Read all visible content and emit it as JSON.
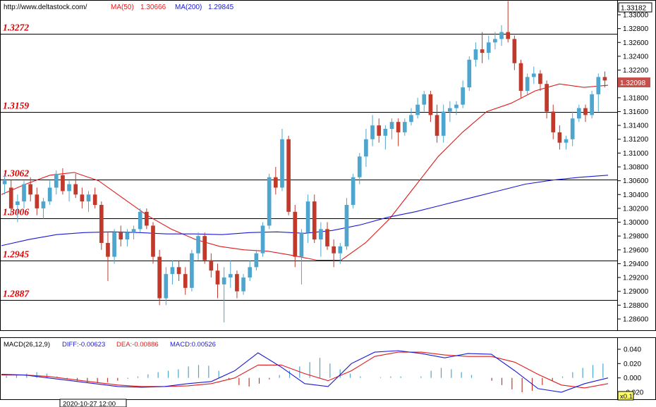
{
  "header": {
    "source": "http://www.deltastock.com/",
    "ma50_label": "MA(50)",
    "ma50_value": "1.30666",
    "ma200_label": "MA(200)",
    "ma200_value": "1.29845"
  },
  "colors": {
    "up": "#4ea6cf",
    "down": "#c0392b",
    "ma50": "#e11b1b",
    "ma200": "#1a1ad6",
    "level_text": "#e00000",
    "grid": "#000000"
  },
  "price_axis": {
    "max_label": "1.33182",
    "current_label": "1.32098",
    "ticks": [
      "1.33000",
      "1.32800",
      "1.32600",
      "1.32400",
      "1.32200",
      "1.31800",
      "1.31600",
      "1.31400",
      "1.31200",
      "1.31000",
      "1.30800",
      "1.30600",
      "1.30400",
      "1.30200",
      "1.30000",
      "1.29800",
      "1.29600",
      "1.29400",
      "1.29200",
      "1.29000",
      "1.28800",
      "1.28600"
    ]
  },
  "levels": [
    {
      "label": "1.3272",
      "value": 1.3272
    },
    {
      "label": "1.3159",
      "value": 1.3159
    },
    {
      "label": "1.3062",
      "value": 1.3062
    },
    {
      "label": "1.3006",
      "value": 1.3006
    },
    {
      "label": "1.2945",
      "value": 1.2945
    },
    {
      "label": "1.2887",
      "value": 1.2887
    }
  ],
  "macd": {
    "label": "MACD(26,12,9)",
    "diff_label": "DIFF:-0.00623",
    "dea_label": "DEA:-0.00886",
    "macd_label": "MACD:0.00526",
    "ticks": [
      "0.040",
      "0.020",
      "0.000",
      "-0.020"
    ]
  },
  "footer": {
    "date_label": "2020-10-27 12:00",
    "zoom_label": "x0.1"
  },
  "chart_data": {
    "type": "candlestick",
    "price_range": [
      1.2845,
      1.3325
    ],
    "candles": [
      [
        1.3055,
        1.3068,
        1.304,
        1.306
      ],
      [
        1.305,
        1.3062,
        1.301,
        1.302
      ],
      [
        1.3025,
        1.304,
        1.3,
        1.303
      ],
      [
        1.303,
        1.306,
        1.302,
        1.3055
      ],
      [
        1.3055,
        1.3065,
        1.303,
        1.304
      ],
      [
        1.304,
        1.305,
        1.301,
        1.302
      ],
      [
        1.302,
        1.3035,
        1.3005,
        1.303
      ],
      [
        1.303,
        1.306,
        1.3025,
        1.305
      ],
      [
        1.305,
        1.3075,
        1.304,
        1.307
      ],
      [
        1.3068,
        1.3078,
        1.304,
        1.3045
      ],
      [
        1.3045,
        1.306,
        1.303,
        1.3055
      ],
      [
        1.3055,
        1.307,
        1.3035,
        1.304
      ],
      [
        1.304,
        1.305,
        1.302,
        1.303
      ],
      [
        1.303,
        1.3045,
        1.3015,
        1.304
      ],
      [
        1.304,
        1.305,
        1.302,
        1.3025
      ],
      [
        1.3025,
        1.303,
        1.296,
        1.297
      ],
      [
        1.297,
        1.2985,
        1.2915,
        1.295
      ],
      [
        1.295,
        1.299,
        1.294,
        1.2985
      ],
      [
        1.2985,
        1.2995,
        1.2965,
        1.2975
      ],
      [
        1.2975,
        1.299,
        1.2965,
        1.2985
      ],
      [
        1.2985,
        1.2995,
        1.2975,
        1.299
      ],
      [
        1.299,
        1.302,
        1.2985,
        1.3015
      ],
      [
        1.3015,
        1.302,
        1.299,
        1.2995
      ],
      [
        1.2995,
        1.3,
        1.294,
        1.295
      ],
      [
        1.295,
        1.296,
        1.288,
        1.289
      ],
      [
        1.289,
        1.2935,
        1.288,
        1.2925
      ],
      [
        1.2925,
        1.2945,
        1.291,
        1.2935
      ],
      [
        1.2935,
        1.2945,
        1.2915,
        1.2925
      ],
      [
        1.2925,
        1.2935,
        1.2895,
        1.2905
      ],
      [
        1.2905,
        1.296,
        1.29,
        1.2955
      ],
      [
        1.2955,
        1.2985,
        1.2945,
        1.298
      ],
      [
        1.298,
        1.2985,
        1.294,
        1.2945
      ],
      [
        1.2945,
        1.2955,
        1.292,
        1.293
      ],
      [
        1.293,
        1.294,
        1.289,
        1.291
      ],
      [
        1.291,
        1.2935,
        1.2855,
        1.292
      ],
      [
        1.292,
        1.2945,
        1.2905,
        1.2925
      ],
      [
        1.2925,
        1.293,
        1.289,
        1.29
      ],
      [
        1.29,
        1.2925,
        1.2895,
        1.292
      ],
      [
        1.292,
        1.2945,
        1.2915,
        1.2935
      ],
      [
        1.2935,
        1.296,
        1.293,
        1.2955
      ],
      [
        1.2955,
        1.3,
        1.295,
        1.2995
      ],
      [
        1.2995,
        1.307,
        1.299,
        1.3065
      ],
      [
        1.3065,
        1.308,
        1.304,
        1.305
      ],
      [
        1.305,
        1.3135,
        1.3045,
        1.312
      ],
      [
        1.312,
        1.3125,
        1.301,
        1.3015
      ],
      [
        1.3015,
        1.3025,
        1.2935,
        1.295
      ],
      [
        1.295,
        1.299,
        1.291,
        1.2985
      ],
      [
        1.2985,
        1.304,
        1.297,
        1.303
      ],
      [
        1.303,
        1.304,
        1.297,
        1.2975
      ],
      [
        1.2975,
        1.3,
        1.295,
        1.299
      ],
      [
        1.299,
        1.3,
        1.296,
        1.2965
      ],
      [
        1.2965,
        1.2975,
        1.2935,
        1.2955
      ],
      [
        1.2955,
        1.297,
        1.294,
        1.2965
      ],
      [
        1.2965,
        1.3035,
        1.296,
        1.3025
      ],
      [
        1.3025,
        1.307,
        1.302,
        1.3065
      ],
      [
        1.3065,
        1.31,
        1.3055,
        1.3095
      ],
      [
        1.3095,
        1.3135,
        1.308,
        1.312
      ],
      [
        1.312,
        1.3155,
        1.311,
        1.314
      ],
      [
        1.314,
        1.315,
        1.3115,
        1.3125
      ],
      [
        1.3125,
        1.314,
        1.3105,
        1.3135
      ],
      [
        1.3135,
        1.315,
        1.312,
        1.3145
      ],
      [
        1.3145,
        1.315,
        1.311,
        1.313
      ],
      [
        1.313,
        1.315,
        1.3125,
        1.3145
      ],
      [
        1.3145,
        1.3165,
        1.314,
        1.3155
      ],
      [
        1.3155,
        1.318,
        1.315,
        1.317
      ],
      [
        1.317,
        1.319,
        1.316,
        1.3185
      ],
      [
        1.3185,
        1.319,
        1.3145,
        1.3155
      ],
      [
        1.3155,
        1.317,
        1.3115,
        1.3125
      ],
      [
        1.3125,
        1.317,
        1.3115,
        1.316
      ],
      [
        1.316,
        1.3175,
        1.3145,
        1.3165
      ],
      [
        1.3165,
        1.3175,
        1.3155,
        1.317
      ],
      [
        1.317,
        1.3205,
        1.3165,
        1.3195
      ],
      [
        1.3195,
        1.324,
        1.319,
        1.3235
      ],
      [
        1.3235,
        1.326,
        1.3225,
        1.325
      ],
      [
        1.325,
        1.3275,
        1.323,
        1.3245
      ],
      [
        1.3245,
        1.327,
        1.3235,
        1.326
      ],
      [
        1.326,
        1.3275,
        1.325,
        1.3265
      ],
      [
        1.3265,
        1.3285,
        1.3255,
        1.3275
      ],
      [
        1.3275,
        1.332,
        1.326,
        1.3265
      ],
      [
        1.3265,
        1.327,
        1.322,
        1.323
      ],
      [
        1.323,
        1.3235,
        1.318,
        1.319
      ],
      [
        1.319,
        1.3215,
        1.3185,
        1.321
      ],
      [
        1.321,
        1.3225,
        1.32,
        1.3215
      ],
      [
        1.3215,
        1.322,
        1.319,
        1.32
      ],
      [
        1.32,
        1.3205,
        1.315,
        1.316
      ],
      [
        1.316,
        1.317,
        1.312,
        1.313
      ],
      [
        1.313,
        1.314,
        1.3105,
        1.3115
      ],
      [
        1.3115,
        1.3125,
        1.3105,
        1.312
      ],
      [
        1.312,
        1.316,
        1.311,
        1.315
      ],
      [
        1.315,
        1.317,
        1.3145,
        1.3165
      ],
      [
        1.3165,
        1.317,
        1.3145,
        1.3155
      ],
      [
        1.3155,
        1.319,
        1.315,
        1.3185
      ],
      [
        1.3185,
        1.3215,
        1.316,
        1.321
      ],
      [
        1.321,
        1.3218,
        1.3195,
        1.3205
      ]
    ],
    "ma50": [
      1.304,
      1.3055,
      1.3068,
      1.3072,
      1.306,
      1.3035,
      1.301,
      1.299,
      1.2975,
      1.2965,
      1.296,
      1.2958,
      1.2952,
      1.2945,
      1.2945,
      1.297,
      1.3005,
      1.305,
      1.3095,
      1.313,
      1.316,
      1.3172,
      1.319,
      1.32,
      1.3195,
      1.3198
    ],
    "ma200": [
      1.2966,
      1.2975,
      1.2982,
      1.2985,
      1.2986,
      1.2985,
      1.2983,
      1.2983,
      1.2982,
      1.2985,
      1.2986,
      1.2984,
      1.2988,
      1.2996,
      1.3007,
      1.3015,
      1.3025,
      1.3035,
      1.3045,
      1.3055,
      1.3061,
      1.3065,
      1.3068
    ],
    "macd_diff": [
      0.005,
      0.004,
      0.0,
      -0.004,
      -0.008,
      -0.012,
      -0.013,
      -0.012,
      -0.008,
      -0.005,
      0.01,
      0.035,
      0.015,
      -0.008,
      -0.012,
      0.02,
      0.036,
      0.038,
      0.034,
      0.028,
      0.034,
      0.033,
      0.01,
      -0.015,
      -0.02,
      -0.008,
      0.0
    ],
    "macd_dea": [
      0.004,
      0.004,
      0.002,
      -0.002,
      -0.006,
      -0.01,
      -0.012,
      -0.012,
      -0.011,
      -0.008,
      0.0,
      0.018,
      0.018,
      0.006,
      -0.004,
      0.01,
      0.03,
      0.036,
      0.036,
      0.032,
      0.03,
      0.03,
      0.022,
      0.005,
      -0.01,
      -0.014,
      -0.008
    ],
    "macd_hist": [
      0.003,
      0.004,
      0.006,
      0.008,
      0.006,
      0.002,
      -0.002,
      -0.004,
      -0.006,
      -0.007,
      -0.006,
      -0.004,
      -0.001,
      0.002,
      0.005,
      0.008,
      0.01,
      0.012,
      0.016,
      0.018,
      0.017,
      0.01,
      -0.002,
      -0.01,
      -0.012,
      -0.008,
      -0.002,
      0.004,
      0.01,
      0.016,
      0.022,
      0.028,
      0.02,
      0.012,
      0.006,
      0.002,
      0.0,
      0.001,
      0.002,
      0.002,
      0.0,
      0.002,
      0.01,
      0.014,
      0.012,
      0.008,
      0.004,
      0.0,
      -0.004,
      -0.01,
      -0.016,
      -0.02,
      -0.018,
      -0.01,
      -0.004,
      0.002,
      0.008,
      0.014,
      0.018,
      0.02
    ]
  }
}
